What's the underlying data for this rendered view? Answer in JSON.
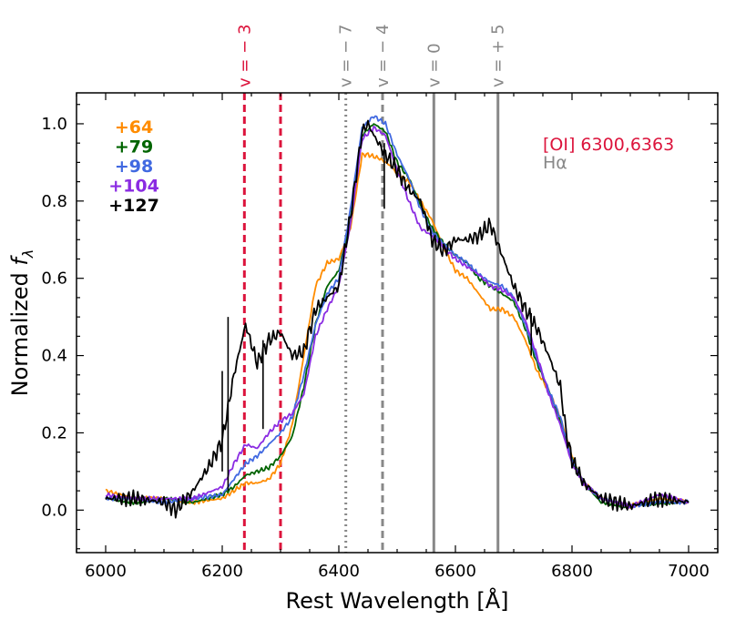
{
  "chart_data": {
    "type": "line",
    "xlabel": "Rest Wavelength [Å]",
    "ylabel_main": "Normalized ",
    "ylabel_symbol": "f",
    "ylabel_subscript": "λ",
    "xlim": [
      5950,
      7050
    ],
    "ylim": [
      -0.11,
      1.08
    ],
    "xticks": [
      6000,
      6200,
      6400,
      6600,
      6800,
      7000
    ],
    "yticks": [
      0.0,
      0.2,
      0.4,
      0.6,
      0.8,
      1.0
    ],
    "ytick_labels": [
      "0.0",
      "0.2",
      "0.4",
      "0.6",
      "0.8",
      "1.0"
    ],
    "grid": false,
    "series": [
      {
        "name": "+64",
        "color": "#ff8c00",
        "x": [
          6000,
          6050,
          6100,
          6150,
          6200,
          6220,
          6240,
          6260,
          6280,
          6300,
          6320,
          6340,
          6360,
          6380,
          6400,
          6420,
          6440,
          6450,
          6470,
          6490,
          6500,
          6520,
          6540,
          6560,
          6580,
          6600,
          6620,
          6640,
          6660,
          6680,
          6700,
          6720,
          6740,
          6760,
          6780,
          6800,
          6820,
          6850,
          6900,
          6950,
          7000
        ],
        "y": [
          0.05,
          0.03,
          0.03,
          0.02,
          0.03,
          0.05,
          0.07,
          0.07,
          0.08,
          0.12,
          0.22,
          0.4,
          0.58,
          0.64,
          0.65,
          0.73,
          0.92,
          0.92,
          0.91,
          0.89,
          0.87,
          0.85,
          0.8,
          0.75,
          0.68,
          0.62,
          0.6,
          0.56,
          0.52,
          0.52,
          0.5,
          0.44,
          0.36,
          0.31,
          0.24,
          0.14,
          0.07,
          0.03,
          0.01,
          0.03,
          0.02
        ]
      },
      {
        "name": "+79",
        "color": "#006400",
        "x": [
          6000,
          6050,
          6100,
          6150,
          6200,
          6220,
          6240,
          6260,
          6280,
          6300,
          6320,
          6340,
          6360,
          6380,
          6400,
          6420,
          6440,
          6460,
          6480,
          6500,
          6520,
          6540,
          6560,
          6580,
          6600,
          6620,
          6640,
          6660,
          6680,
          6700,
          6720,
          6740,
          6760,
          6780,
          6800,
          6820,
          6850,
          6900,
          6950,
          7000
        ],
        "y": [
          0.03,
          0.02,
          0.03,
          0.02,
          0.04,
          0.06,
          0.09,
          0.1,
          0.11,
          0.14,
          0.19,
          0.32,
          0.48,
          0.58,
          0.62,
          0.75,
          0.97,
          1.0,
          0.98,
          0.9,
          0.86,
          0.79,
          0.73,
          0.69,
          0.66,
          0.64,
          0.6,
          0.58,
          0.56,
          0.54,
          0.47,
          0.38,
          0.31,
          0.23,
          0.13,
          0.07,
          0.02,
          0.01,
          0.02,
          0.02
        ]
      },
      {
        "name": "+98",
        "color": "#4169e1",
        "x": [
          6000,
          6050,
          6100,
          6150,
          6200,
          6220,
          6240,
          6260,
          6280,
          6300,
          6320,
          6340,
          6360,
          6380,
          6400,
          6420,
          6440,
          6460,
          6480,
          6500,
          6520,
          6540,
          6560,
          6580,
          6600,
          6620,
          6640,
          6660,
          6680,
          6700,
          6720,
          6740,
          6760,
          6780,
          6800,
          6820,
          6850,
          6900,
          6950,
          7000
        ],
        "y": [
          0.03,
          0.03,
          0.02,
          0.03,
          0.04,
          0.08,
          0.12,
          0.14,
          0.17,
          0.2,
          0.24,
          0.35,
          0.48,
          0.56,
          0.6,
          0.78,
          0.99,
          1.02,
          1.0,
          0.92,
          0.86,
          0.78,
          0.72,
          0.69,
          0.66,
          0.64,
          0.61,
          0.59,
          0.58,
          0.55,
          0.48,
          0.39,
          0.31,
          0.24,
          0.13,
          0.07,
          0.03,
          0.01,
          0.02,
          0.02
        ]
      },
      {
        "name": "+104",
        "color": "#8a2be2",
        "x": [
          6000,
          6050,
          6100,
          6150,
          6200,
          6220,
          6240,
          6260,
          6280,
          6300,
          6320,
          6340,
          6360,
          6380,
          6400,
          6420,
          6440,
          6460,
          6480,
          6500,
          6520,
          6540,
          6560,
          6580,
          6600,
          6620,
          6640,
          6660,
          6680,
          6700,
          6720,
          6740,
          6760,
          6780,
          6800,
          6820,
          6850,
          6900,
          6950,
          7000
        ],
        "y": [
          0.04,
          0.03,
          0.03,
          0.03,
          0.06,
          0.12,
          0.17,
          0.16,
          0.2,
          0.23,
          0.25,
          0.3,
          0.45,
          0.52,
          0.58,
          0.74,
          0.96,
          0.99,
          0.97,
          0.88,
          0.8,
          0.73,
          0.71,
          0.68,
          0.65,
          0.63,
          0.61,
          0.58,
          0.57,
          0.55,
          0.49,
          0.4,
          0.3,
          0.22,
          0.12,
          0.07,
          0.03,
          0.01,
          0.04,
          0.02
        ]
      },
      {
        "name": "+127",
        "color": "#000000",
        "x": [
          6000,
          6050,
          6100,
          6120,
          6150,
          6180,
          6200,
          6220,
          6240,
          6260,
          6280,
          6300,
          6320,
          6340,
          6360,
          6380,
          6400,
          6420,
          6440,
          6450,
          6460,
          6480,
          6500,
          6520,
          6540,
          6560,
          6580,
          6600,
          6620,
          6640,
          6660,
          6680,
          6700,
          6720,
          6740,
          6760,
          6780,
          6790,
          6800,
          6820,
          6850,
          6900,
          6950,
          7000
        ],
        "y": [
          0.03,
          0.03,
          0.02,
          0.0,
          0.05,
          0.12,
          0.18,
          0.35,
          0.48,
          0.38,
          0.44,
          0.46,
          0.4,
          0.41,
          0.52,
          0.55,
          0.58,
          0.76,
          0.98,
          1.0,
          0.97,
          0.92,
          0.88,
          0.83,
          0.8,
          0.7,
          0.67,
          0.7,
          0.7,
          0.71,
          0.74,
          0.66,
          0.58,
          0.52,
          0.47,
          0.4,
          0.32,
          0.2,
          0.13,
          0.07,
          0.03,
          0.01,
          0.03,
          0.02
        ]
      }
    ],
    "spikes": [
      {
        "x": 6200,
        "y1": 0.1,
        "y2": 0.36
      },
      {
        "x": 6210,
        "y1": 0.05,
        "y2": 0.5
      },
      {
        "x": 6270,
        "y1": 0.21,
        "y2": 0.44
      },
      {
        "x": 6478,
        "y1": 0.78,
        "y2": 0.95
      },
      {
        "x": 6730,
        "y1": 0.4,
        "y2": 0.51
      }
    ],
    "vertical_lines": [
      {
        "x": 6238,
        "label": "v = − 3",
        "color": "#dc143c",
        "style": "dashed",
        "labeled": true
      },
      {
        "x": 6300,
        "label": "",
        "color": "#dc143c",
        "style": "dashed",
        "labeled": false
      },
      {
        "x": 6412,
        "label": "v = − 7",
        "color": "#888888",
        "style": "dotted",
        "labeled": true
      },
      {
        "x": 6475,
        "label": "v = − 4",
        "color": "#888888",
        "style": "dashed",
        "labeled": true
      },
      {
        "x": 6563,
        "label": "v = 0",
        "color": "#888888",
        "style": "solid",
        "labeled": true
      },
      {
        "x": 6673,
        "label": "v = + 5",
        "color": "#888888",
        "style": "solid",
        "labeled": true
      }
    ],
    "line_legend": [
      {
        "label": "[OI] 6300,6363",
        "color": "#dc143c"
      },
      {
        "label": "Hα",
        "color": "#888888"
      }
    ]
  }
}
